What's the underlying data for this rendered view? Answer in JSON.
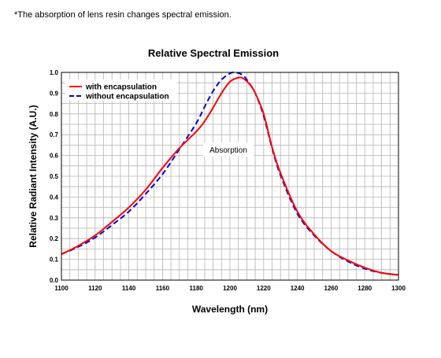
{
  "note": "*The absorption of lens resin changes spectral emission.",
  "chart_data": {
    "type": "line",
    "title": "Relative Spectral Emission",
    "xlabel": "Wavelength (nm)",
    "ylabel": "Relative Radiant Intensity (A.U.)",
    "xlim": [
      1100,
      1300
    ],
    "ylim": [
      0.0,
      1.0
    ],
    "x_ticks": [
      "1100",
      "1120",
      "1140",
      "1160",
      "1180",
      "1200",
      "1220",
      "1240",
      "1260",
      "1280",
      "1300"
    ],
    "y_ticks": [
      "0.0",
      "0.1",
      "0.2",
      "0.3",
      "0.4",
      "0.5",
      "0.6",
      "0.7",
      "0.8",
      "0.9",
      "1.0"
    ],
    "grid": true,
    "legend_position": "top-left",
    "annotation": "Absorption",
    "series": [
      {
        "name": "with encapsulation",
        "color": "#ff0000",
        "style": "solid",
        "x": [
          1100,
          1110,
          1120,
          1130,
          1140,
          1150,
          1160,
          1170,
          1180,
          1185,
          1190,
          1195,
          1200,
          1205,
          1208,
          1212,
          1215,
          1220,
          1225,
          1230,
          1240,
          1250,
          1260,
          1270,
          1280,
          1290,
          1300
        ],
        "y": [
          0.125,
          0.165,
          0.215,
          0.28,
          0.35,
          0.435,
          0.54,
          0.635,
          0.715,
          0.765,
          0.83,
          0.9,
          0.955,
          0.975,
          0.97,
          0.94,
          0.9,
          0.8,
          0.64,
          0.515,
          0.33,
          0.22,
          0.14,
          0.095,
          0.06,
          0.035,
          0.025
        ]
      },
      {
        "name": "without encapsulation",
        "color": "#0000dd",
        "style": "dashed",
        "x": [
          1100,
          1110,
          1120,
          1130,
          1140,
          1150,
          1160,
          1170,
          1180,
          1185,
          1190,
          1195,
          1200,
          1203,
          1207,
          1210,
          1215,
          1220,
          1225,
          1230,
          1240,
          1250,
          1260,
          1270,
          1280,
          1290,
          1300
        ],
        "y": [
          0.125,
          0.16,
          0.205,
          0.265,
          0.33,
          0.415,
          0.51,
          0.63,
          0.755,
          0.835,
          0.91,
          0.965,
          0.995,
          1.0,
          0.99,
          0.965,
          0.9,
          0.79,
          0.635,
          0.505,
          0.32,
          0.215,
          0.14,
          0.09,
          0.055,
          0.035,
          0.025
        ]
      }
    ]
  }
}
